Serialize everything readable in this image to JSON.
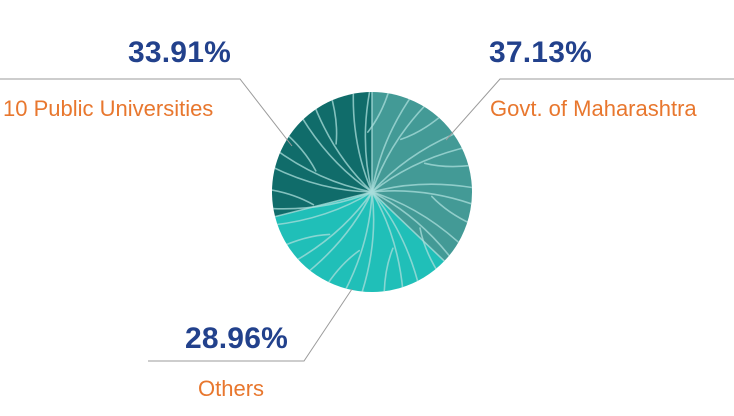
{
  "chart_data": {
    "type": "pie",
    "categories": [
      "Govt. of Maharashtra",
      "10 Public Universities",
      "Others"
    ],
    "values": [
      37.13,
      33.91,
      28.96
    ],
    "value_labels": [
      "37.13%",
      "33.91%",
      "28.96%"
    ],
    "colors": [
      "#439a96",
      "#20bfb8",
      "#106c6a"
    ],
    "vein_color": "#a9dedb",
    "title": "",
    "legend": "none"
  }
}
